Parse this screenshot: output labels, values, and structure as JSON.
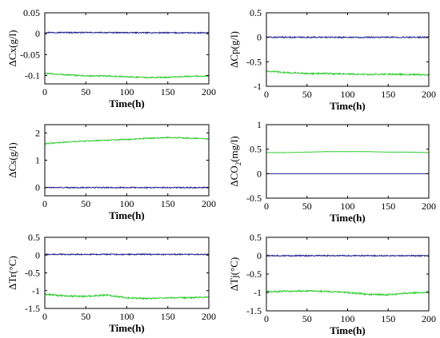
{
  "chart_data": [
    {
      "type": "line",
      "ylabel": "ΔCx(g/l)",
      "xlabel": "Time(h)",
      "xlim": [
        0,
        200
      ],
      "ylim": [
        -0.12,
        0.05
      ],
      "xticks": [
        0,
        50,
        100,
        150,
        200
      ],
      "xtick_labels": [
        "0",
        "50",
        "100",
        "150",
        "200"
      ],
      "yticks": [
        0.05,
        0,
        -0.05,
        -0.1
      ],
      "ytick_labels": [
        "0.05",
        "0",
        "-0.05",
        "-0.1"
      ],
      "grid": false,
      "series": [
        {
          "color": "#1f1f8f",
          "noise": 0.0012,
          "x": [
            0,
            200
          ],
          "y": [
            0.003,
            0.002
          ]
        },
        {
          "color": "#33cc33",
          "noise": 0.0015,
          "x": [
            0,
            25,
            50,
            75,
            100,
            125,
            150,
            175,
            200
          ],
          "y": [
            -0.095,
            -0.098,
            -0.101,
            -0.101,
            -0.103,
            -0.105,
            -0.104,
            -0.102,
            -0.101
          ]
        }
      ]
    },
    {
      "type": "line",
      "ylabel": "ΔCp(g/l)",
      "xlabel": "Time(h)",
      "xlim": [
        0,
        200
      ],
      "ylim": [
        -1,
        0.5
      ],
      "xticks": [
        0,
        50,
        100,
        150,
        200
      ],
      "xtick_labels": [
        "0",
        "50",
        "100",
        "150",
        "200"
      ],
      "yticks": [
        0.5,
        0,
        -0.5,
        -1
      ],
      "ytick_labels": [
        "0.5",
        "0",
        "-0.5",
        "-1"
      ],
      "grid": false,
      "series": [
        {
          "color": "#1f1f8f",
          "noise": 0.012,
          "x": [
            0,
            200
          ],
          "y": [
            0.0,
            0.0
          ]
        },
        {
          "color": "#33cc33",
          "noise": 0.015,
          "x": [
            0,
            25,
            50,
            75,
            100,
            125,
            150,
            175,
            200
          ],
          "y": [
            -0.69,
            -0.72,
            -0.74,
            -0.74,
            -0.75,
            -0.76,
            -0.75,
            -0.76,
            -0.77
          ]
        }
      ]
    },
    {
      "type": "line",
      "ylabel": "ΔCs(g/l)",
      "xlabel": "Time(h)",
      "xlim": [
        0,
        200
      ],
      "ylim": [
        -0.3,
        2.3
      ],
      "xticks": [
        0,
        50,
        100,
        150,
        200
      ],
      "xtick_labels": [
        "0",
        "50",
        "100",
        "150",
        "200"
      ],
      "yticks": [
        2,
        1,
        0
      ],
      "ytick_labels": [
        "2",
        "1",
        "0"
      ],
      "grid": false,
      "series": [
        {
          "color": "#1f1f8f",
          "noise": 0.018,
          "x": [
            0,
            200
          ],
          "y": [
            0.0,
            0.0
          ]
        },
        {
          "color": "#33cc33",
          "noise": 0.02,
          "x": [
            0,
            25,
            50,
            75,
            100,
            125,
            150,
            175,
            200
          ],
          "y": [
            1.6,
            1.66,
            1.7,
            1.73,
            1.76,
            1.8,
            1.83,
            1.81,
            1.78
          ]
        }
      ]
    },
    {
      "type": "line",
      "ylabel": "ΔCO",
      "ylabel_sub": "2",
      "ylabel_rest": "(mg/l)",
      "xlabel": "Time(h)",
      "xlim": [
        0,
        200
      ],
      "ylim": [
        -0.5,
        1
      ],
      "xticks": [
        0,
        50,
        100,
        150,
        200
      ],
      "xtick_labels": [
        "0",
        "50",
        "100",
        "150",
        "200"
      ],
      "yticks": [
        1,
        0.5,
        0,
        -0.5
      ],
      "ytick_labels": [
        "1",
        "0.5",
        "0",
        "-0.5"
      ],
      "grid": false,
      "series": [
        {
          "color": "#1f1f8f",
          "noise": 0.0,
          "x": [
            0,
            200
          ],
          "y": [
            0.0,
            0.0
          ]
        },
        {
          "color": "#33cc33",
          "noise": 0.002,
          "x": [
            0,
            25,
            50,
            75,
            100,
            125,
            150,
            175,
            200
          ],
          "y": [
            0.43,
            0.43,
            0.44,
            0.45,
            0.45,
            0.45,
            0.44,
            0.44,
            0.43
          ]
        }
      ]
    },
    {
      "type": "line",
      "ylabel": "ΔTr(°C)",
      "xlabel": "Time(h)",
      "xlim": [
        0,
        200
      ],
      "ylim": [
        -1.5,
        0.5
      ],
      "xticks": [
        0,
        50,
        100,
        150,
        200
      ],
      "xtick_labels": [
        "0",
        "50",
        "100",
        "150",
        "200"
      ],
      "yticks": [
        0.5,
        0,
        -0.5,
        -1,
        -1.5
      ],
      "ytick_labels": [
        "0.5",
        "0",
        "-0.5",
        "-1",
        "-1.5"
      ],
      "grid": false,
      "series": [
        {
          "color": "#1f1f8f",
          "noise": 0.015,
          "x": [
            0,
            200
          ],
          "y": [
            0.02,
            0.02
          ]
        },
        {
          "color": "#33cc33",
          "noise": 0.02,
          "x": [
            0,
            25,
            50,
            75,
            100,
            125,
            150,
            175,
            200
          ],
          "y": [
            -1.1,
            -1.15,
            -1.16,
            -1.12,
            -1.2,
            -1.22,
            -1.2,
            -1.2,
            -1.18
          ]
        }
      ]
    },
    {
      "type": "line",
      "ylabel": "ΔTj(°C)",
      "xlabel": "Time(h)",
      "xlim": [
        0,
        200
      ],
      "ylim": [
        -1.5,
        0.5
      ],
      "xticks": [
        0,
        50,
        100,
        150,
        200
      ],
      "xtick_labels": [
        "0",
        "50",
        "100",
        "150",
        "200"
      ],
      "yticks": [
        0.5,
        0,
        -0.5,
        -1,
        -1.5
      ],
      "ytick_labels": [
        "0.5",
        "0",
        "-0.5",
        "-1",
        "-1.5"
      ],
      "grid": false,
      "series": [
        {
          "color": "#1f1f8f",
          "noise": 0.015,
          "x": [
            0,
            200
          ],
          "y": [
            0.0,
            0.0
          ]
        },
        {
          "color": "#33cc33",
          "noise": 0.02,
          "x": [
            0,
            25,
            50,
            75,
            100,
            125,
            150,
            175,
            200
          ],
          "y": [
            -0.98,
            -0.97,
            -0.96,
            -0.97,
            -1.0,
            -1.05,
            -1.06,
            -1.02,
            -0.99
          ]
        }
      ]
    }
  ]
}
